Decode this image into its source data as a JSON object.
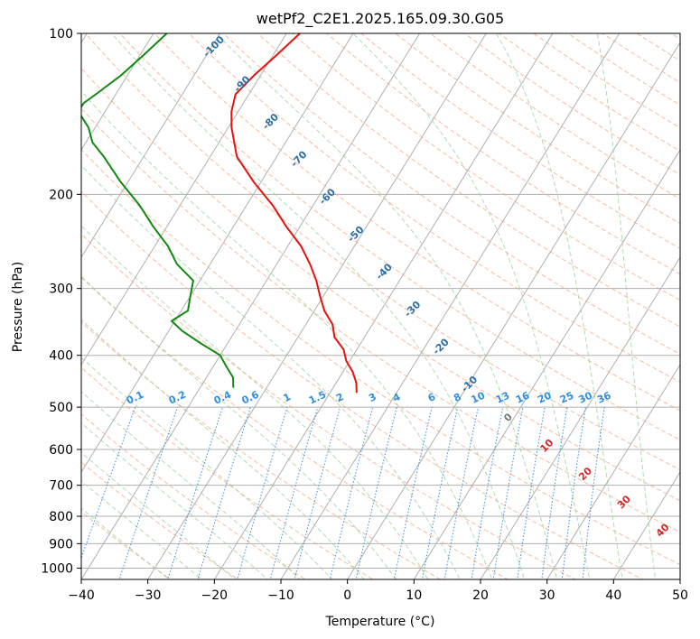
{
  "chart_data": {
    "type": "line",
    "title": "wetPf2_C2E1.2025.165.09.30.G05",
    "xlabel": "Temperature (°C)",
    "ylabel": "Pressure (hPa)",
    "xlim": [
      -40,
      50
    ],
    "ylim": [
      1050,
      100
    ],
    "y_scale": "log",
    "skew": "skew-T",
    "grid": true,
    "x_ticks": [
      "−40",
      "−30",
      "−20",
      "−10",
      "0",
      "10",
      "20",
      "30",
      "40",
      "50"
    ],
    "x_tick_values": [
      -40,
      -30,
      -20,
      -10,
      0,
      10,
      20,
      30,
      40,
      50
    ],
    "y_ticks": [
      "100",
      "200",
      "300",
      "400",
      "500",
      "600",
      "700",
      "800",
      "900",
      "1000"
    ],
    "y_tick_values": [
      100,
      200,
      300,
      400,
      500,
      600,
      700,
      800,
      900,
      1000
    ],
    "colors": {
      "temperature": "#e8120c",
      "dewpoint": "#128a12",
      "isotherm": "#b0b0b0",
      "dry_adiabat": "#f4a582",
      "moist_adiabat": "#9fd29f",
      "mixing_ratio": "#3a8fd8",
      "isotherm_label": "#2a6fa5",
      "mixing_label": "#2f8fe0",
      "moist_label": "#d62728"
    },
    "series": [
      {
        "key": "temperature",
        "p": [
          100,
          110,
          120,
          130,
          140,
          150,
          170,
          190,
          210,
          230,
          250,
          270,
          290,
          310,
          330,
          350,
          370,
          390,
          410,
          430,
          450,
          470
        ],
        "t": [
          -58,
          -59.5,
          -61,
          -62,
          -61,
          -59.5,
          -56,
          -51,
          -46,
          -42,
          -38,
          -35,
          -32.5,
          -30.5,
          -28.5,
          -26,
          -24.5,
          -22,
          -20.5,
          -18.5,
          -17,
          -16
        ]
      },
      {
        "key": "dewpoint",
        "p": [
          100,
          110,
          120,
          130,
          135,
          140,
          150,
          160,
          170,
          190,
          210,
          230,
          250,
          270,
          290,
          310,
          330,
          345,
          360,
          380,
          400,
          420,
          440,
          460
        ],
        "t": [
          -78,
          -79.5,
          -81,
          -83,
          -84,
          -84,
          -81,
          -79,
          -76,
          -71,
          -66,
          -62,
          -58,
          -55,
          -51,
          -50,
          -49,
          -50.5,
          -48,
          -44,
          -40,
          -38,
          -36,
          -35
        ]
      }
    ],
    "isotherm_labels": {
      "temps": [
        -100,
        -90,
        -80,
        -70,
        -60,
        -50,
        -40,
        -30,
        -20,
        -10
      ],
      "text": [
        "-100",
        "-90",
        "-80",
        "-70",
        "-60",
        "-50",
        "-40",
        "-30",
        "-20",
        "-10"
      ]
    },
    "mixing_ratio_labels": {
      "values": [
        0.1,
        0.2,
        0.4,
        0.6,
        1,
        1.5,
        2,
        3,
        4,
        6,
        8,
        10,
        13,
        16,
        20,
        25,
        30,
        36
      ],
      "text": [
        "0.1",
        "0.2",
        "0.4",
        "0.6",
        "1",
        "1.5",
        "2",
        "3",
        "4",
        "6",
        "8",
        "10",
        "13",
        "16",
        "20",
        "25",
        "30",
        "36"
      ],
      "label_pressure": 500
    },
    "moist_adiabat_labels": {
      "values": [
        0,
        10,
        20,
        30,
        40
      ],
      "text": [
        "0",
        "10",
        "20",
        "30",
        "40"
      ]
    }
  }
}
